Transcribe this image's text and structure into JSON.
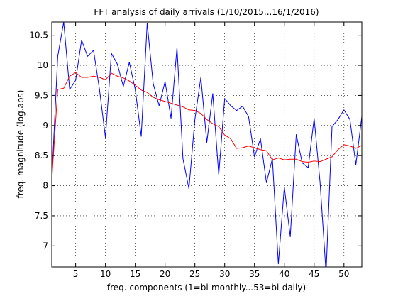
{
  "chart_data": {
    "type": "line",
    "title": "FFT analysis of daily arrivals (1/10/2015...16/1/2016)",
    "xlabel": "freq. components (1=bi-monthly...53=bi-daily)",
    "ylabel": "freq. magnitude (log.abs)",
    "xlim": [
      1,
      53
    ],
    "ylim": [
      6.65,
      10.72
    ],
    "grid": true,
    "x_ticks": [
      5,
      10,
      15,
      20,
      25,
      30,
      35,
      40,
      45,
      50
    ],
    "y_ticks": [
      7,
      7.5,
      8,
      8.5,
      9,
      9.5,
      10,
      10.5
    ],
    "x_tick_labels": [
      "5",
      "10",
      "15",
      "20",
      "25",
      "30",
      "35",
      "40",
      "45",
      "50"
    ],
    "y_tick_labels": [
      "7",
      "7.5",
      "8",
      "8.5",
      "9",
      "9.5",
      "10",
      "10.5"
    ],
    "x": [
      1,
      2,
      3,
      4,
      5,
      6,
      7,
      8,
      9,
      10,
      11,
      12,
      13,
      14,
      15,
      16,
      17,
      18,
      19,
      20,
      21,
      22,
      23,
      24,
      25,
      26,
      27,
      28,
      29,
      30,
      31,
      32,
      33,
      34,
      35,
      36,
      37,
      38,
      39,
      40,
      41,
      42,
      43,
      44,
      45,
      46,
      47,
      48,
      49,
      50,
      51,
      52,
      53
    ],
    "series": [
      {
        "color": "#0000ff",
        "values": [
          8.1,
          10.15,
          10.72,
          9.6,
          9.75,
          10.42,
          10.15,
          10.25,
          9.6,
          8.8,
          10.2,
          10.02,
          9.65,
          10.05,
          9.6,
          8.82,
          10.7,
          9.7,
          9.33,
          9.73,
          9.12,
          10.3,
          8.45,
          7.95,
          9.1,
          9.8,
          8.72,
          9.53,
          8.18,
          9.45,
          9.33,
          9.25,
          9.32,
          9.15,
          8.48,
          8.78,
          8.05,
          8.45,
          6.7,
          7.98,
          7.15,
          8.85,
          8.38,
          8.3,
          9.12,
          8.05,
          6.55,
          8.98,
          9.1,
          9.26,
          9.1,
          8.35,
          9.15
        ]
      },
      {
        "color": "#ff0000",
        "values": [
          8.1,
          9.6,
          9.62,
          9.82,
          9.88,
          9.8,
          9.8,
          9.82,
          9.8,
          9.76,
          9.87,
          9.82,
          9.79,
          9.74,
          9.67,
          9.59,
          9.55,
          9.47,
          9.43,
          9.4,
          9.37,
          9.34,
          9.31,
          9.26,
          9.25,
          9.2,
          9.1,
          9.03,
          8.98,
          8.84,
          8.78,
          8.62,
          8.63,
          8.66,
          8.63,
          8.6,
          8.58,
          8.43,
          8.46,
          8.43,
          8.44,
          8.44,
          8.4,
          8.39,
          8.41,
          8.4,
          8.44,
          8.48,
          8.6,
          8.68,
          8.66,
          8.62,
          8.67
        ]
      }
    ]
  }
}
